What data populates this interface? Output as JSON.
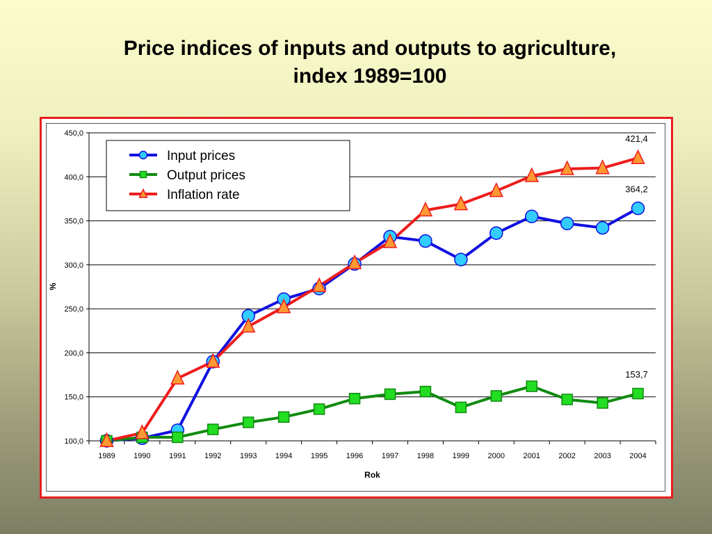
{
  "title_line1": "Price indices of inputs and outputs to agriculture,",
  "title_line2": "index 1989=100",
  "chart_data": {
    "type": "line",
    "x": [
      "1989",
      "1990",
      "1991",
      "1992",
      "1993",
      "1994",
      "1995",
      "1996",
      "1997",
      "1998",
      "1999",
      "2000",
      "2001",
      "2002",
      "2003",
      "2004"
    ],
    "ylabel": "%",
    "xlabel": "Rok",
    "ylim": [
      100,
      450
    ],
    "yticks": [
      "100,0",
      "150,0",
      "200,0",
      "250,0",
      "300,0",
      "350,0",
      "400,0",
      "450,0"
    ],
    "ytick_values": [
      100,
      150,
      200,
      250,
      300,
      350,
      400,
      450
    ],
    "grid": true,
    "legend_position": "top-left",
    "series": [
      {
        "name": "Input prices",
        "marker": "circle",
        "line_color": "#1010e0",
        "marker_color": "#33ccff",
        "values": [
          100,
          103,
          112,
          190,
          242,
          261,
          273,
          301,
          332,
          327,
          306,
          336,
          355,
          347,
          342,
          364.2
        ]
      },
      {
        "name": "Output prices",
        "marker": "square",
        "line_color": "#108a10",
        "marker_color": "#22dd22",
        "values": [
          100,
          104,
          104,
          113,
          121,
          127,
          136,
          148,
          153,
          156,
          138,
          151,
          162,
          147,
          143,
          153.7
        ]
      },
      {
        "name": "Inflation rate",
        "marker": "triangle",
        "line_color": "#ee1c1c",
        "marker_color": "#ff9933",
        "values": [
          100,
          109,
          171,
          190,
          230,
          252,
          276,
          302,
          326,
          362,
          369,
          384,
          401,
          409,
          410,
          421.4
        ]
      }
    ],
    "annotations": [
      {
        "text": "421,4",
        "series": 2,
        "index": 15
      },
      {
        "text": "364,2",
        "series": 0,
        "index": 15
      },
      {
        "text": "153,7",
        "series": 1,
        "index": 15
      }
    ]
  }
}
